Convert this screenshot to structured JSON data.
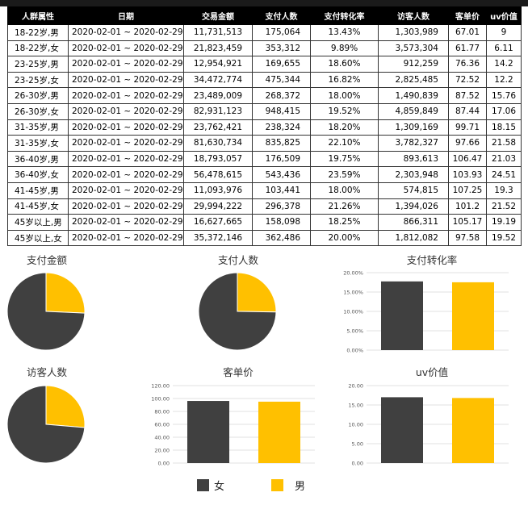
{
  "table": {
    "headers": [
      "人群属性",
      "日期",
      "交易金额",
      "支付人数",
      "支付转化率",
      "访客人数",
      "客单价",
      "uv价值"
    ],
    "rows": [
      [
        "18-22岁,男",
        "2020-02-01 ~ 2020-02-29",
        "11,731,513",
        "175,064",
        "13.43%",
        "1,303,989",
        "67.01",
        "9"
      ],
      [
        "18-22岁,女",
        "2020-02-01 ~ 2020-02-29",
        "21,823,459",
        "353,312",
        "9.89%",
        "3,573,304",
        "61.77",
        "6.11"
      ],
      [
        "23-25岁,男",
        "2020-02-01 ~ 2020-02-29",
        "12,954,921",
        "169,655",
        "18.60%",
        "912,259",
        "76.36",
        "14.2"
      ],
      [
        "23-25岁,女",
        "2020-02-01 ~ 2020-02-29",
        "34,472,774",
        "475,344",
        "16.82%",
        "2,825,485",
        "72.52",
        "12.2"
      ],
      [
        "26-30岁,男",
        "2020-02-01 ~ 2020-02-29",
        "23,489,009",
        "268,372",
        "18.00%",
        "1,490,839",
        "87.52",
        "15.76"
      ],
      [
        "26-30岁,女",
        "2020-02-01 ~ 2020-02-29",
        "82,931,123",
        "948,415",
        "19.52%",
        "4,859,849",
        "87.44",
        "17.06"
      ],
      [
        "31-35岁,男",
        "2020-02-01 ~ 2020-02-29",
        "23,762,421",
        "238,324",
        "18.20%",
        "1,309,169",
        "99.71",
        "18.15"
      ],
      [
        "31-35岁,女",
        "2020-02-01 ~ 2020-02-29",
        "81,630,734",
        "835,825",
        "22.10%",
        "3,782,327",
        "97.66",
        "21.58"
      ],
      [
        "36-40岁,男",
        "2020-02-01 ~ 2020-02-29",
        "18,793,057",
        "176,509",
        "19.75%",
        "893,613",
        "106.47",
        "21.03"
      ],
      [
        "36-40岁,女",
        "2020-02-01 ~ 2020-02-29",
        "56,478,615",
        "543,436",
        "23.59%",
        "2,303,948",
        "103.93",
        "24.51"
      ],
      [
        "41-45岁,男",
        "2020-02-01 ~ 2020-02-29",
        "11,093,976",
        "103,441",
        "18.00%",
        "574,815",
        "107.25",
        "19.3"
      ],
      [
        "41-45岁,女",
        "2020-02-01 ~ 2020-02-29",
        "29,994,222",
        "296,378",
        "21.26%",
        "1,394,026",
        "101.2",
        "21.52"
      ],
      [
        "45岁以上,男",
        "2020-02-01 ~ 2020-02-29",
        "16,627,665",
        "158,098",
        "18.25%",
        "866,311",
        "105.17",
        "19.19"
      ],
      [
        "45岁以上,女",
        "2020-02-01 ~ 2020-02-29",
        "35,372,146",
        "362,486",
        "20.00%",
        "1,812,082",
        "97.58",
        "19.52"
      ]
    ]
  },
  "colors": {
    "female": "#404040",
    "male": "#ffc000"
  },
  "legend": {
    "female": "女",
    "male": "男"
  },
  "chart_data": [
    {
      "type": "pie",
      "title": "支付金额",
      "labels": [
        "女",
        "男"
      ],
      "values": [
        342703073,
        118452562
      ]
    },
    {
      "type": "pie",
      "title": "支付人数",
      "labels": [
        "女",
        "男"
      ],
      "values": [
        3815196,
        1289463
      ]
    },
    {
      "type": "bar",
      "title": "支付转化率",
      "categories": [
        "女",
        "男"
      ],
      "values": [
        0.1774,
        0.1752
      ],
      "ylim": [
        0,
        0.2
      ],
      "yticks": [
        "0.00%",
        "5.00%",
        "10.00%",
        "15.00%",
        "20.00%"
      ]
    },
    {
      "type": "pie",
      "title": "访客人数",
      "labels": [
        "女",
        "男"
      ],
      "values": [
        20551021,
        7350995
      ]
    },
    {
      "type": "bar",
      "title": "客单价",
      "categories": [
        "女",
        "男"
      ],
      "values": [
        96.2,
        95.1
      ],
      "ylim": [
        0,
        120
      ],
      "yticks": [
        "0.00",
        "20.00",
        "40.00",
        "60.00",
        "80.00",
        "100.00",
        "120.00"
      ]
    },
    {
      "type": "bar",
      "title": "uv价值",
      "categories": [
        "女",
        "男"
      ],
      "values": [
        17.0,
        16.8
      ],
      "ylim": [
        0,
        20
      ],
      "yticks": [
        "0.00",
        "5.00",
        "10.00",
        "15.00",
        "20.00"
      ]
    }
  ]
}
